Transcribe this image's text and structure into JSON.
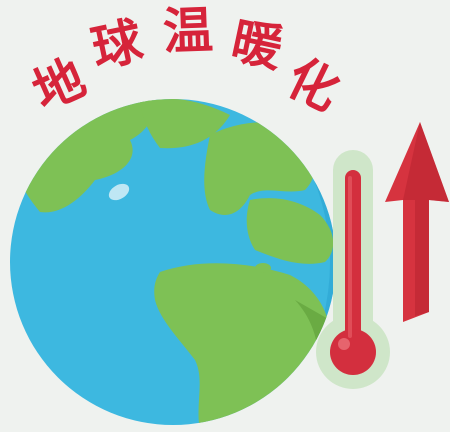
{
  "title": {
    "text": "地球温暖化",
    "chars": [
      "地",
      "球",
      "温",
      "暖",
      "化"
    ]
  },
  "colors": {
    "background": "#eff2ef",
    "title": "#d6243a",
    "ocean": "#3db8e0",
    "ocean_shadow": "#2aa3cf",
    "land": "#7ec155",
    "land_shadow": "#6aab43",
    "thermometer_body": "#cfe6c9",
    "mercury": "#d32f3e",
    "arrow": "#d6333f",
    "arrow_shadow": "#b8232f"
  },
  "icons": {
    "globe": "earth-globe-icon",
    "thermometer": "thermometer-icon",
    "arrow": "rising-arrow-icon"
  }
}
